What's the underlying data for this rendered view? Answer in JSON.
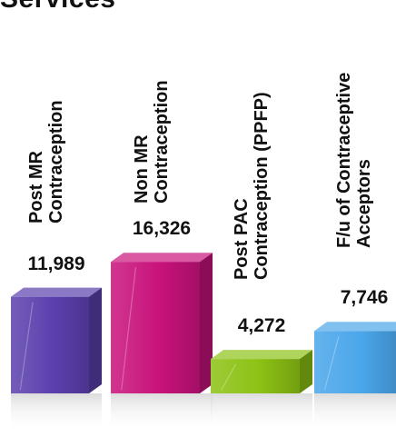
{
  "header": {
    "title": "Services"
  },
  "colors": {
    "bars": [
      "#5b40ad",
      "#c8127c",
      "#8cc214",
      "#4aa6ea"
    ],
    "shadow": "#d8d8d8"
  },
  "chart_data": {
    "type": "bar",
    "title": "Services",
    "categories": [
      "Post MR\nContraception",
      "Non MR\nContraception",
      "Post PAC\nContraception (PPFP)",
      "F/u of Contraceptive\nAcceptors"
    ],
    "values": [
      11989,
      16326,
      4272,
      7746
    ],
    "value_labels": [
      "11,989",
      "16,326",
      "4,272",
      "7,746"
    ],
    "xlabel": "",
    "ylabel": "",
    "ylim": [
      0,
      17000
    ],
    "grid": false,
    "legend": "none"
  }
}
